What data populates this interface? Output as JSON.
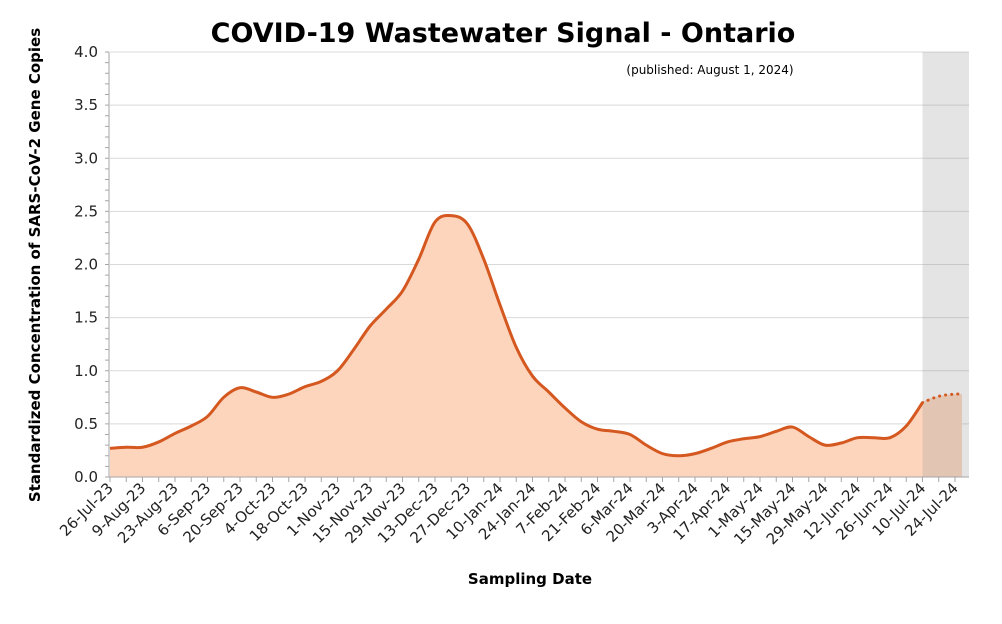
{
  "chart_data": {
    "type": "area",
    "title": "COVID-19 Wastewater Signal - Ontario",
    "annotation": "(published: August 1, 2024)",
    "xlabel": "Sampling Date",
    "ylabel": "Standardized Concentration of SARS-CoV-2 Gene Copies",
    "ylim": [
      0,
      4.0
    ],
    "yticks": [
      "0.0",
      "0.5",
      "1.0",
      "1.5",
      "2.0",
      "2.5",
      "3.0",
      "3.5",
      "4.0"
    ],
    "xticks": [
      "26-Jul-23",
      "9-Aug-23",
      "23-Aug-23",
      "6-Sep-23",
      "20-Sep-23",
      "4-Oct-23",
      "18-Oct-23",
      "1-Nov-23",
      "15-Nov-23",
      "29-Nov-23",
      "13-Dec-23",
      "27-Dec-23",
      "10-Jan-24",
      "24-Jan-24",
      "7-Feb-24",
      "21-Feb-24",
      "6-Mar-24",
      "20-Mar-24",
      "3-Apr-24",
      "17-Apr-24",
      "1-May-24",
      "15-May-24",
      "29-May-24",
      "12-Jun-24",
      "26-Jun-24",
      "10-Jul-24",
      "24-Jul-24"
    ],
    "grid": true,
    "shaded_region": {
      "start": "10-Jul-24",
      "end": "end of axis",
      "color": "#e3e3e3"
    },
    "line_color": "#d4581f",
    "fill_color": "#fdd5bd",
    "series": [
      {
        "dates": [
          "26-Jul-23",
          "2-Aug-23",
          "9-Aug-23",
          "16-Aug-23",
          "23-Aug-23",
          "30-Aug-23",
          "6-Sep-23",
          "13-Sep-23",
          "20-Sep-23",
          "27-Sep-23",
          "4-Oct-23",
          "11-Oct-23",
          "18-Oct-23",
          "25-Oct-23",
          "1-Nov-23",
          "8-Nov-23",
          "15-Nov-23",
          "22-Nov-23",
          "29-Nov-23",
          "6-Dec-23",
          "13-Dec-23",
          "20-Dec-23",
          "27-Dec-23",
          "3-Jan-24",
          "10-Jan-24",
          "17-Jan-24",
          "24-Jan-24",
          "31-Jan-24",
          "7-Feb-24",
          "14-Feb-24",
          "21-Feb-24",
          "28-Feb-24",
          "6-Mar-24",
          "13-Mar-24",
          "20-Mar-24",
          "27-Mar-24",
          "3-Apr-24",
          "10-Apr-24",
          "17-Apr-24",
          "24-Apr-24",
          "1-May-24",
          "8-May-24",
          "15-May-24",
          "22-May-24",
          "29-May-24",
          "5-Jun-24",
          "12-Jun-24",
          "19-Jun-24",
          "26-Jun-24",
          "3-Jul-24",
          "10-Jul-24",
          "17-Jul-24",
          "24-Jul-24",
          "27-Jul-24"
        ],
        "values": [
          0.27,
          0.28,
          0.28,
          0.33,
          0.41,
          0.48,
          0.57,
          0.75,
          0.84,
          0.8,
          0.75,
          0.78,
          0.85,
          0.9,
          1.0,
          1.2,
          1.42,
          1.58,
          1.75,
          2.05,
          2.4,
          2.46,
          2.38,
          2.05,
          1.62,
          1.22,
          0.95,
          0.8,
          0.65,
          0.52,
          0.45,
          0.43,
          0.4,
          0.3,
          0.22,
          0.2,
          0.22,
          0.27,
          0.33,
          0.36,
          0.38,
          0.43,
          0.47,
          0.38,
          0.3,
          0.32,
          0.37,
          0.37,
          0.37,
          0.48,
          0.7,
          0.76,
          0.78,
          0.78
        ],
        "provisional_from": "10-Jul-24"
      }
    ]
  }
}
